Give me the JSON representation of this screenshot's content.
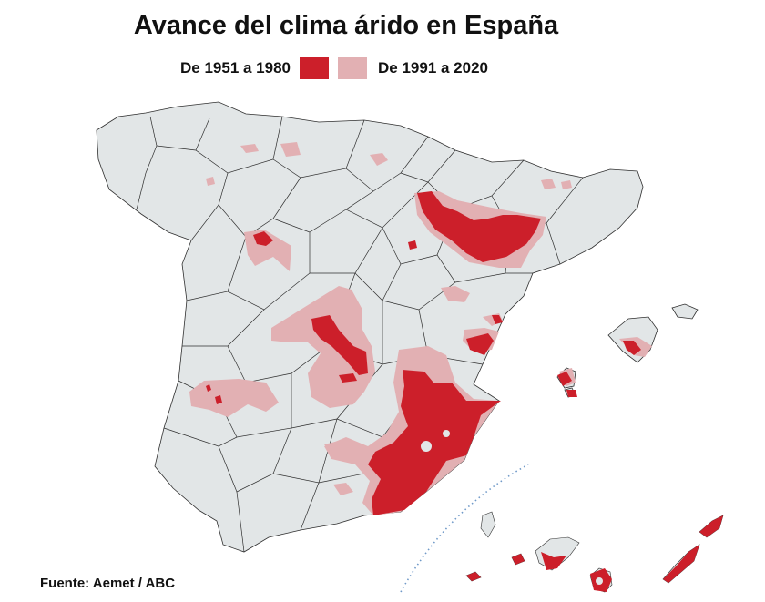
{
  "title": "Avance del clima árido en España",
  "legend": {
    "period_1": {
      "label": "De 1951 a 1980",
      "color": "#cc1f2a"
    },
    "period_2": {
      "label": "De 1991 a 2020",
      "color": "#e2b0b3"
    }
  },
  "source": "Fuente: Aemet / ABC",
  "colors": {
    "land": "#e2e6e7",
    "borders": "#2f2f2f",
    "canary_separator": "#6f99c8"
  }
}
